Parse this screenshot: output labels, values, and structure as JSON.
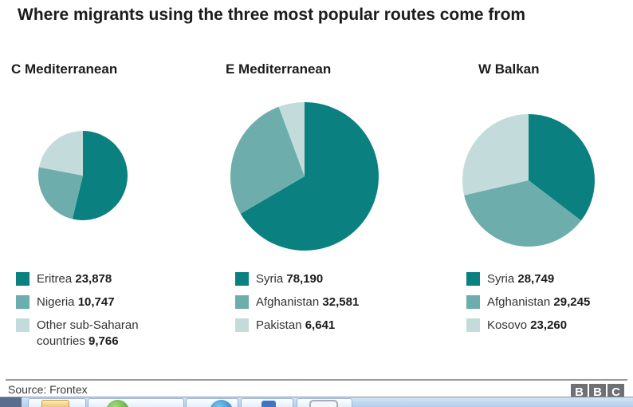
{
  "title": "Where migrants using the three most popular routes come from",
  "source": "Source: Frontex",
  "logo": {
    "letters": [
      "B",
      "B",
      "C"
    ]
  },
  "colors": {
    "series": [
      "#0b8080",
      "#6dadac",
      "#c3dcdb"
    ],
    "title_text": "#1c1c1c",
    "rule_gray": "#9b9b9b"
  },
  "chart_data": [
    {
      "type": "pie",
      "title": "C Mediterranean",
      "legend_position": "below",
      "start_angle_deg": 0,
      "direction": "clockwise",
      "slices": [
        {
          "label": "Eritrea",
          "value": 23878,
          "display": "23,878"
        },
        {
          "label": "Nigeria",
          "value": 10747,
          "display": "10,747"
        },
        {
          "label": "Other sub-Saharan countries",
          "value": 9766,
          "display": "9,766"
        }
      ]
    },
    {
      "type": "pie",
      "title": "E Mediterranean",
      "legend_position": "below",
      "start_angle_deg": 0,
      "direction": "clockwise",
      "slices": [
        {
          "label": "Syria",
          "value": 78190,
          "display": "78,190"
        },
        {
          "label": "Afghanistan",
          "value": 32581,
          "display": "32,581"
        },
        {
          "label": "Pakistan",
          "value": 6641,
          "display": "6,641"
        }
      ]
    },
    {
      "type": "pie",
      "title": "W Balkan",
      "legend_position": "below",
      "start_angle_deg": 0,
      "direction": "clockwise",
      "slices": [
        {
          "label": "Syria",
          "value": 28749,
          "display": "28,749"
        },
        {
          "label": "Afghanistan",
          "value": 29245,
          "display": "29,245"
        },
        {
          "label": "Kosovo",
          "value": 23260,
          "display": "23,260"
        }
      ]
    }
  ],
  "taskbar": {
    "icons": [
      "folder-icon",
      "green-orb-icon",
      "blue-orb-icon",
      "blue-app-icon",
      "window-icon"
    ]
  }
}
